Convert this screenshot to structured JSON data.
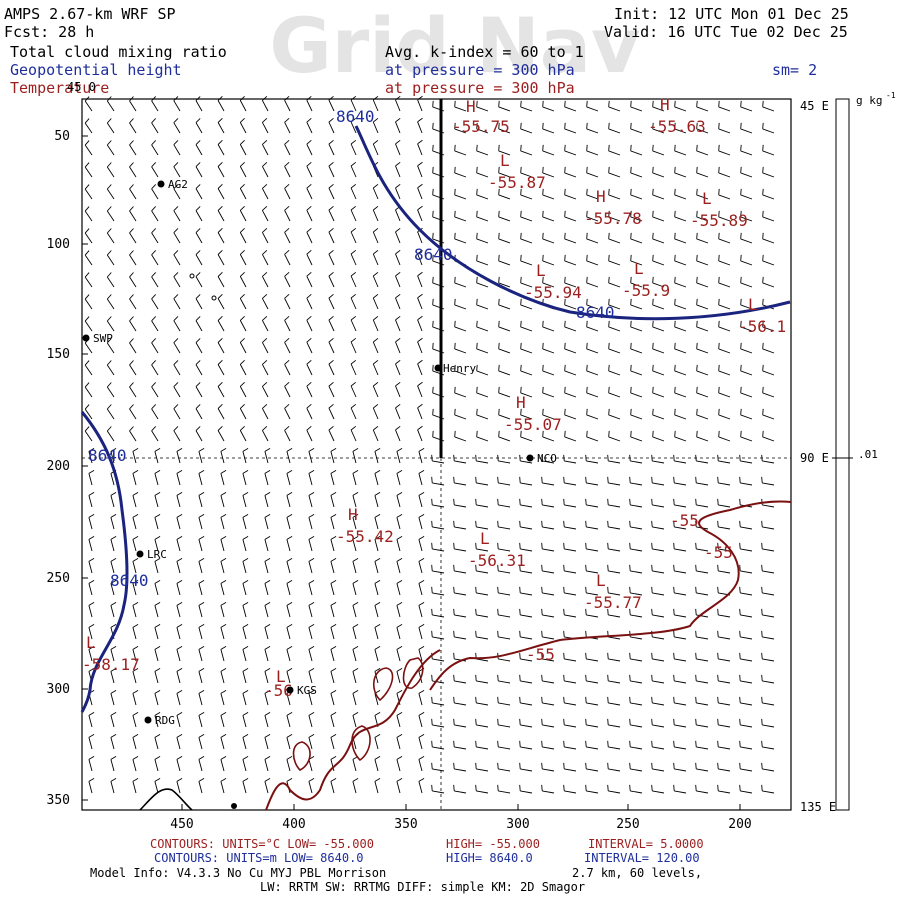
{
  "header": {
    "model": "AMPS 2.67-km WRF SP",
    "fcst": "Fcst:   28 h",
    "init": "Init: 12 UTC Mon 01 Dec 25",
    "valid": "Valid: 16 UTC Tue 02 Dec 25",
    "field1": "Total cloud mixing ratio",
    "field2": "Geopotential height",
    "field3": "Temperature",
    "avg": "Avg. k-index =  60 to    1",
    "pressure_geo": "at pressure =  300 hPa",
    "pressure_temp": "at pressure =  300 hPa",
    "smooth": "sm= 2",
    "watermark": "Grid Nav"
  },
  "axes": {
    "y_ticks": [
      "50",
      "100",
      "150",
      "200",
      "250",
      "300",
      "350"
    ],
    "x_ticks": [
      "450",
      "400",
      "350",
      "300",
      "250",
      "200"
    ],
    "right_ticks": [
      "45 E",
      "90 E",
      "135 E"
    ],
    "top_tick": "45 0",
    "colorbar_unit": "g kg",
    "colorbar_unit_exp": "-1",
    "colorbar_value": ".01"
  },
  "stations": [
    {
      "id": "AG2"
    },
    {
      "id": "SWP"
    },
    {
      "id": "Henry"
    },
    {
      "id": "NCO"
    },
    {
      "id": "LRC"
    },
    {
      "id": "KGS"
    },
    {
      "id": "RDG"
    }
  ],
  "height_labels": [
    "8640",
    "8640",
    "8640",
    "8640",
    "8640"
  ],
  "temp_extrema": [
    {
      "type": "H",
      "value": "-55.75"
    },
    {
      "type": "H",
      "value": "-55.63"
    },
    {
      "type": "L",
      "value": "-55.87"
    },
    {
      "type": "H",
      "value": "-55.78"
    },
    {
      "type": "L",
      "value": "-55.89"
    },
    {
      "type": "L",
      "value": "-55.94"
    },
    {
      "type": "L",
      "value": "-55.9"
    },
    {
      "type": "L",
      "value": "-56.1"
    },
    {
      "type": "H",
      "value": "-55.07"
    },
    {
      "type": "H",
      "value": "-55.42"
    },
    {
      "type": "L",
      "value": "-56.31"
    },
    {
      "type": "L",
      "value": "-55.77"
    },
    {
      "type": "L",
      "value": "-58.17"
    },
    {
      "type": "L",
      "value": "-56"
    }
  ],
  "temp_contour_labels": [
    "-55",
    "-55",
    "-55"
  ],
  "footer": {
    "temp_contours": "CONTOURS:  UNITS=°C  LOW= -55.000",
    "temp_high": "HIGH= -55.000",
    "temp_interval": "INTERVAL=   5.0000",
    "geo_contours": "CONTOURS:  UNITS=m  LOW=  8640.0",
    "geo_high": "HIGH=  8640.0",
    "geo_interval": "INTERVAL=   120.00",
    "model_info": "Model Info: V4.3.3   No Cu    MYJ PBL  Morrison",
    "resolution": "2.7 km,  60 levels,",
    "physics": "LW: RRTM SW: RRTMG   DIFF: simple KM: 2D Smagor"
  },
  "colors": {
    "height": "#1a237e",
    "temperature": "#8b1a1a",
    "label_blue": "#1f2e9c",
    "label_red": "#9c1f1f",
    "watermark": "#e4e4e4"
  }
}
